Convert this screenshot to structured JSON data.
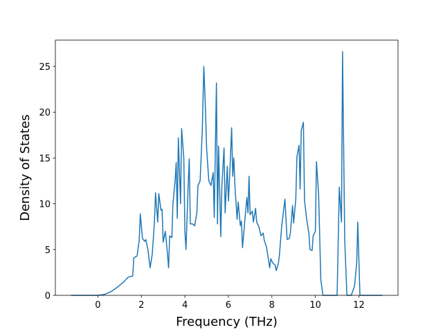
{
  "chart_data": {
    "type": "line",
    "x_label": "Frequency (THz)",
    "y_label": "Density of States",
    "color": "#1f77b4",
    "x": [
      -1.24,
      0,
      0.3,
      0.6,
      0.9,
      1.2,
      1.4,
      1.6,
      1.65,
      1.8,
      1.9,
      1.95,
      2.05,
      2.15,
      2.2,
      2.3,
      2.4,
      2.5,
      2.6,
      2.65,
      2.75,
      2.8,
      2.9,
      2.95,
      3.0,
      3.1,
      3.2,
      3.25,
      3.3,
      3.4,
      3.45,
      3.55,
      3.6,
      3.65,
      3.7,
      3.8,
      3.85,
      3.95,
      4.0,
      4.05,
      4.15,
      4.2,
      4.25,
      4.35,
      4.45,
      4.55,
      4.6,
      4.7,
      4.8,
      4.87,
      4.95,
      5.0,
      5.1,
      5.2,
      5.3,
      5.35,
      5.45,
      5.5,
      5.55,
      5.65,
      5.7,
      5.8,
      5.85,
      5.95,
      6.0,
      6.05,
      6.15,
      6.2,
      6.25,
      6.3,
      6.4,
      6.45,
      6.55,
      6.6,
      6.65,
      6.75,
      6.85,
      6.9,
      6.95,
      7.0,
      7.1,
      7.15,
      7.25,
      7.3,
      7.4,
      7.5,
      7.6,
      7.65,
      7.75,
      7.85,
      7.9,
      7.95,
      8.05,
      8.15,
      8.2,
      8.3,
      8.35,
      8.45,
      8.55,
      8.6,
      8.7,
      8.8,
      8.85,
      8.95,
      9.0,
      9.1,
      9.15,
      9.25,
      9.3,
      9.35,
      9.45,
      9.5,
      9.6,
      9.7,
      9.75,
      9.85,
      9.9,
      10.0,
      10.05,
      10.15,
      10.25,
      10.35,
      11.0,
      11.1,
      11.2,
      11.25,
      11.35,
      11.45,
      11.65,
      11.8,
      11.9,
      11.95,
      12.05,
      13.08
    ],
    "values": [
      0,
      0,
      0.1,
      0.4,
      0.9,
      1.5,
      2.0,
      2.1,
      4.1,
      4.3,
      6,
      8.9,
      6.2,
      5.9,
      6.1,
      5,
      3.0,
      4.5,
      8,
      11.2,
      8,
      11.1,
      9.3,
      9.4,
      5.8,
      7,
      4.5,
      3.0,
      6.5,
      6.3,
      10,
      12.5,
      14.5,
      8.4,
      17.2,
      10,
      18.2,
      15,
      7,
      5,
      12,
      14.9,
      7.8,
      7.8,
      7.6,
      9,
      12,
      12.5,
      18,
      25,
      20,
      16,
      12.5,
      12,
      13.4,
      8.5,
      23.2,
      7.8,
      16.3,
      6.4,
      12,
      16.1,
      9,
      14.1,
      10.3,
      12.5,
      18.3,
      13,
      15,
      12,
      8.3,
      10.2,
      7.6,
      8.1,
      5.2,
      8,
      10.7,
      9,
      13,
      8.8,
      9.2,
      8,
      9.5,
      8,
      7.5,
      6.5,
      6.8,
      6,
      5.3,
      3.8,
      3,
      4,
      3.5,
      3.3,
      2.7,
      3.5,
      4.5,
      7.5,
      9.5,
      10.5,
      6.1,
      6.2,
      6.8,
      9.8,
      7.9,
      10.5,
      15.1,
      16.4,
      11.6,
      18,
      18.9,
      10.4,
      8.3,
      6.8,
      5,
      4.9,
      6.5,
      7,
      14.6,
      11,
      1.7,
      0,
      0,
      11.8,
      8,
      26.6,
      6,
      0,
      0,
      1,
      3.5,
      8,
      0,
      0
    ],
    "xlim": [
      -1.956,
      13.8
    ],
    "ylim": [
      0,
      27.87
    ],
    "xticks": [
      0,
      2,
      4,
      6,
      8,
      10,
      12
    ],
    "yticks": [
      0,
      5,
      10,
      15,
      20,
      25
    ]
  }
}
